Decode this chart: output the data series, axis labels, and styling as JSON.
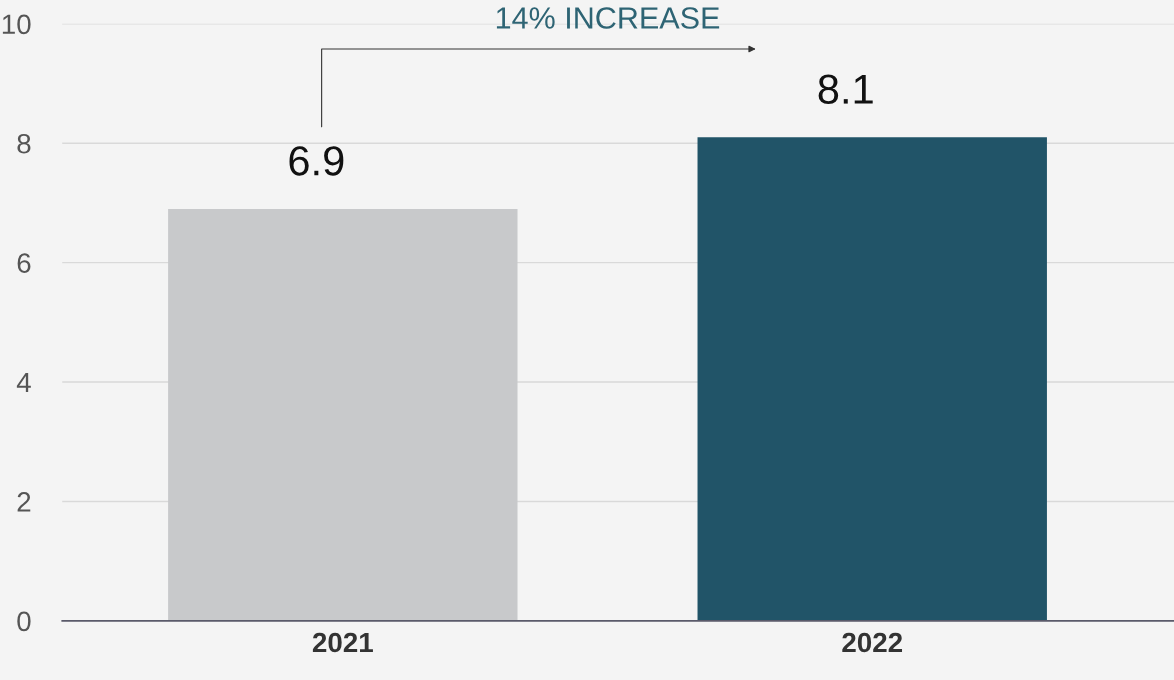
{
  "chart_data": {
    "type": "bar",
    "categories": [
      "2021",
      "2022"
    ],
    "values": [
      6.9,
      8.1
    ],
    "colors": [
      "#c8c9cb",
      "#215468"
    ],
    "data_labels": true,
    "annotations": [
      "14% INCREASE"
    ],
    "ylim": [
      0,
      10
    ],
    "yticks": [
      0,
      2,
      4,
      6,
      8,
      10
    ],
    "grid": "y"
  }
}
